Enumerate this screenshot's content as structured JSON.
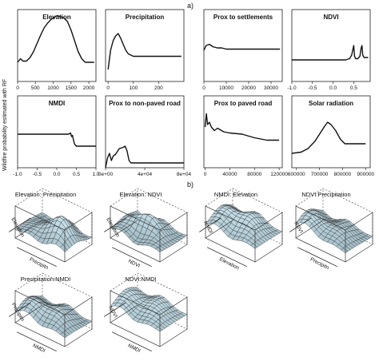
{
  "figure": {
    "label_a": "a)",
    "label_b": "b)",
    "ylabel": "Wildfire probability estimated with RF"
  },
  "chart_data": [
    {
      "type": "line",
      "title": "Elevation",
      "xlim": [
        0,
        2200
      ],
      "xticks": [
        "0",
        "500",
        "1000",
        "1500",
        "2000"
      ],
      "xtick_values": [
        0,
        500,
        1000,
        1500,
        2000
      ],
      "x": [
        0,
        80,
        150,
        250,
        350,
        450,
        550,
        650,
        750,
        850,
        950,
        1050,
        1120,
        1200,
        1300,
        1400,
        1500,
        1600,
        1700,
        1800,
        1900,
        2000,
        2150
      ],
      "y": [
        0.46,
        0.49,
        0.47,
        0.47,
        0.5,
        0.55,
        0.62,
        0.69,
        0.75,
        0.79,
        0.82,
        0.84,
        0.85,
        0.84,
        0.83,
        0.8,
        0.73,
        0.64,
        0.55,
        0.49,
        0.46,
        0.46,
        0.46
      ]
    },
    {
      "type": "line",
      "title": "Precipitation",
      "xlim": [
        -10,
        300
      ],
      "xticks": [
        "0",
        "100",
        "200"
      ],
      "xtick_values": [
        0,
        100,
        200
      ],
      "x": [
        0,
        10,
        20,
        30,
        40,
        50,
        60,
        70,
        80,
        90,
        100,
        120,
        150,
        200,
        250,
        290
      ],
      "y": [
        0.4,
        0.56,
        0.64,
        0.68,
        0.7,
        0.66,
        0.61,
        0.56,
        0.53,
        0.52,
        0.51,
        0.51,
        0.51,
        0.51,
        0.51,
        0.51
      ]
    },
    {
      "type": "line",
      "title": "Prox to settlements",
      "xlim": [
        0,
        35000
      ],
      "xticks": [
        "0",
        "10000",
        "20000",
        "30000"
      ],
      "xtick_values": [
        0,
        10000,
        20000,
        30000
      ],
      "x": [
        0,
        1000,
        2500,
        4000,
        6000,
        8000,
        10000,
        14000,
        20000,
        26000,
        34000
      ],
      "y": [
        0.56,
        0.6,
        0.61,
        0.59,
        0.58,
        0.58,
        0.57,
        0.57,
        0.57,
        0.57,
        0.57
      ]
    },
    {
      "type": "line",
      "title": "NDVI",
      "xlim": [
        -1.0,
        0.9
      ],
      "xticks": [
        "-1.0",
        "-0.5",
        "0.0",
        "0.5"
      ],
      "xtick_values": [
        -1.0,
        -0.5,
        0.0,
        0.5
      ],
      "x": [
        -1.0,
        -0.5,
        0.0,
        0.3,
        0.4,
        0.45,
        0.5,
        0.52,
        0.55,
        0.6,
        0.65,
        0.68,
        0.7,
        0.72,
        0.75,
        0.8,
        0.85
      ],
      "y": [
        0.48,
        0.48,
        0.48,
        0.48,
        0.49,
        0.52,
        0.6,
        0.51,
        0.49,
        0.49,
        0.51,
        0.58,
        0.6,
        0.52,
        0.5,
        0.5,
        0.5
      ]
    },
    {
      "type": "line",
      "title": "NMDI",
      "xlim": [
        -1.0,
        1.0
      ],
      "xticks": [
        "-1.0",
        "-0.5",
        "0.0",
        "0.5",
        "1.0"
      ],
      "xtick_values": [
        -1.0,
        -0.5,
        0.0,
        0.5,
        1.0
      ],
      "x": [
        -1.0,
        -0.5,
        0.0,
        0.2,
        0.3,
        0.35,
        0.38,
        0.4,
        0.45,
        0.5,
        0.6,
        0.8,
        1.0
      ],
      "y": [
        0.58,
        0.58,
        0.58,
        0.58,
        0.58,
        0.59,
        0.56,
        0.57,
        0.5,
        0.48,
        0.48,
        0.48,
        0.48
      ]
    },
    {
      "type": "line",
      "title": "Prox to non-paved road",
      "xlim": [
        0,
        80000
      ],
      "xticks": [
        "0e+00",
        "4e+04",
        "8e+04"
      ],
      "xtick_values": [
        0,
        40000,
        80000
      ],
      "x": [
        0,
        2000,
        4000,
        6000,
        8000,
        10000,
        14000,
        18000,
        20000,
        22000,
        24000,
        26000,
        28000,
        32000,
        40000,
        60000,
        80000
      ],
      "y": [
        0.3,
        0.38,
        0.42,
        0.36,
        0.4,
        0.41,
        0.46,
        0.47,
        0.48,
        0.44,
        0.36,
        0.34,
        0.34,
        0.34,
        0.34,
        0.34,
        0.34
      ]
    },
    {
      "type": "line",
      "title": "Prox to paved road",
      "xlim": [
        -2000,
        125000
      ],
      "xticks": [
        "0",
        "40000",
        "80000",
        "120000"
      ],
      "xtick_values": [
        0,
        40000,
        80000,
        120000
      ],
      "x": [
        0,
        2000,
        4000,
        7000,
        10000,
        15000,
        20000,
        30000,
        40000,
        60000,
        80000,
        100000,
        120000
      ],
      "y": [
        0.64,
        0.75,
        0.66,
        0.68,
        0.64,
        0.61,
        0.63,
        0.6,
        0.59,
        0.58,
        0.55,
        0.53,
        0.53
      ]
    },
    {
      "type": "line",
      "title": "Solar radiation",
      "xlim": [
        580000,
        920000
      ],
      "xticks": [
        "600000",
        "700000",
        "800000",
        "900000"
      ],
      "xtick_values": [
        600000,
        700000,
        800000,
        900000
      ],
      "x": [
        580000,
        620000,
        650000,
        680000,
        700000,
        720000,
        735000,
        750000,
        770000,
        790000,
        810000,
        830000,
        860000,
        900000
      ],
      "y": [
        0.42,
        0.43,
        0.46,
        0.52,
        0.58,
        0.64,
        0.68,
        0.66,
        0.61,
        0.54,
        0.5,
        0.5,
        0.5,
        0.5
      ]
    }
  ],
  "surfaces": [
    {
      "title": "Elevation: Precipitation",
      "xlabel": "Elevation",
      "ylabel": "Precipitn",
      "peak": [
        0.62,
        0.45
      ],
      "base": 0.25,
      "height": 0.55,
      "spread": 0.25
    },
    {
      "title": "Elevation: NDVI",
      "xlabel": "Elevation",
      "ylabel": "NDVI",
      "peak": [
        0.4,
        0.55
      ],
      "base": 0.3,
      "height": 0.55,
      "spread": 0.18
    },
    {
      "title": "NMDI: Elevation",
      "xlabel": "NMDI",
      "ylabel": "Elevation",
      "peak": [
        0.35,
        0.55
      ],
      "base": 0.4,
      "height": 0.45,
      "spread": 0.3
    },
    {
      "title": "NDVI:Precipitation",
      "xlabel": "NDVI",
      "ylabel": "Precipitn",
      "peak": [
        0.25,
        0.35
      ],
      "base": 0.25,
      "height": 0.4,
      "spread": 0.35
    },
    {
      "title": "Precipitation:NMDI",
      "xlabel": "Precipitn",
      "ylabel": "NMDI",
      "peak": [
        0.35,
        0.4
      ],
      "base": 0.25,
      "height": 0.45,
      "spread": 0.3
    },
    {
      "title": "NDVI:NMDI",
      "xlabel": "NDVI",
      "ylabel": "NMDI",
      "peak": [
        0.3,
        0.55
      ],
      "base": 0.45,
      "height": 0.3,
      "spread": 0.35
    }
  ]
}
